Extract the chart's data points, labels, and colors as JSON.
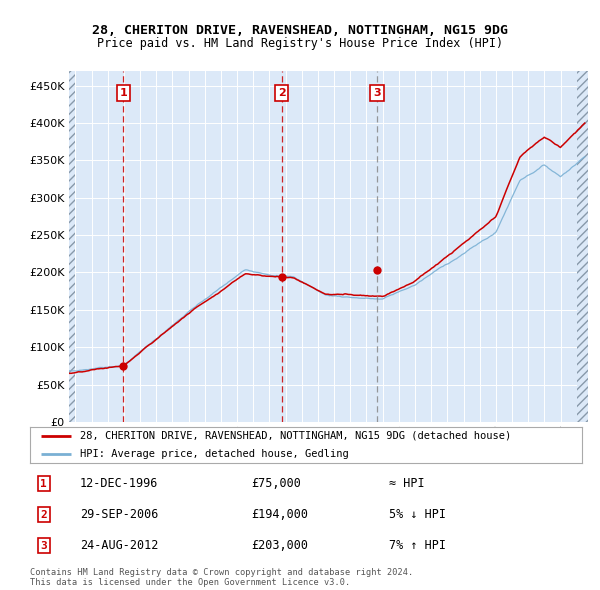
{
  "title1": "28, CHERITON DRIVE, RAVENSHEAD, NOTTINGHAM, NG15 9DG",
  "title2": "Price paid vs. HM Land Registry's House Price Index (HPI)",
  "legend_label_red": "28, CHERITON DRIVE, RAVENSHEAD, NOTTINGHAM, NG15 9DG (detached house)",
  "legend_label_blue": "HPI: Average price, detached house, Gedling",
  "sale1_date": "12-DEC-1996",
  "sale1_price": 75000,
  "sale1_hpi": "≈ HPI",
  "sale2_date": "29-SEP-2006",
  "sale2_price": 194000,
  "sale2_hpi": "5% ↓ HPI",
  "sale3_date": "24-AUG-2012",
  "sale3_price": 203000,
  "sale3_hpi": "7% ↑ HPI",
  "footer": "Contains HM Land Registry data © Crown copyright and database right 2024.\nThis data is licensed under the Open Government Licence v3.0.",
  "yticks": [
    0,
    50000,
    100000,
    150000,
    200000,
    250000,
    300000,
    350000,
    400000,
    450000
  ],
  "plot_bg": "#dce9f8",
  "red_line_color": "#cc0000",
  "blue_line_color": "#7ab0d4",
  "vline1_x": 1996.95,
  "vline2_x": 2006.75,
  "vline3_x": 2012.65,
  "sale1_marker_x": 1996.95,
  "sale1_marker_y": 75000,
  "sale2_marker_x": 2006.75,
  "sale2_marker_y": 194000,
  "sale3_marker_x": 2012.65,
  "sale3_marker_y": 203000,
  "xlim_start": 1993.6,
  "xlim_end": 2025.7
}
